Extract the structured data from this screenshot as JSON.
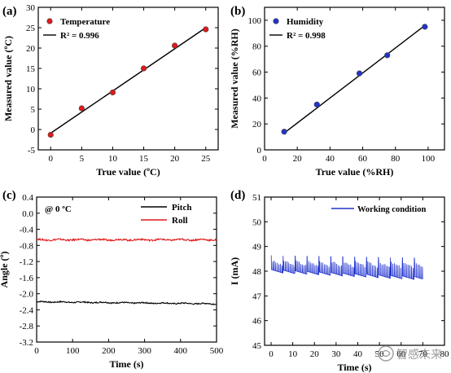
{
  "panels": [
    {
      "id": "a",
      "label": "(a)",
      "type": "scatter",
      "xlabel": "True value (ºC)",
      "ylabel": "Measured value (ºC)",
      "xlim": [
        -2,
        27
      ],
      "ylim": [
        -5,
        30
      ],
      "xticks": [
        0,
        5,
        10,
        15,
        20,
        25
      ],
      "yticks": [
        -5,
        0,
        5,
        10,
        15,
        20,
        25,
        30
      ],
      "series": [
        {
          "name": "Temperature",
          "color": "#e0191b",
          "x": [
            0,
            5,
            10,
            15,
            20,
            25
          ],
          "y": [
            -1.3,
            5.2,
            9.1,
            15.0,
            20.6,
            24.6
          ]
        }
      ],
      "fit": {
        "x": [
          0,
          25
        ],
        "y": [
          -0.9,
          25.0
        ],
        "label": "R² = 0.996"
      },
      "annotation": ""
    },
    {
      "id": "b",
      "label": "(b)",
      "type": "scatter",
      "xlabel": "True value (%RH)",
      "ylabel": "Measured value (%RH)",
      "xlim": [
        0,
        110
      ],
      "ylim": [
        0,
        110
      ],
      "xticks": [
        0,
        20,
        40,
        60,
        80,
        100
      ],
      "yticks": [
        0,
        20,
        40,
        60,
        80,
        100
      ],
      "series": [
        {
          "name": "Humidity",
          "color": "#2233cc",
          "x": [
            12,
            32,
            58,
            75,
            98
          ],
          "y": [
            14,
            35,
            59,
            73,
            95
          ]
        }
      ],
      "fit": {
        "x": [
          12,
          98
        ],
        "y": [
          13,
          96
        ],
        "label": "R² = 0.998"
      },
      "annotation": ""
    },
    {
      "id": "c",
      "label": "(c)",
      "type": "line",
      "xlabel": "Time (s)",
      "ylabel": "Angle (º)",
      "xlim": [
        0,
        500
      ],
      "ylim": [
        -3.2,
        0.4
      ],
      "xticks": [
        0,
        100,
        200,
        300,
        400,
        500
      ],
      "yticks": [
        -3.2,
        -2.8,
        -2.4,
        -2.0,
        -1.6,
        -1.2,
        -0.8,
        -0.4,
        0.0,
        0.4
      ],
      "series": [
        {
          "name": "Pitch",
          "color": "#000000",
          "base": -2.2,
          "trend": -0.05,
          "noise": 0.015
        },
        {
          "name": "Roll",
          "color": "#e0191b",
          "base": -0.66,
          "trend": 0.0,
          "noise": 0.02
        }
      ],
      "annotation": "@ 0 ºC"
    },
    {
      "id": "d",
      "label": "(d)",
      "type": "line",
      "xlabel": "Time (s)",
      "ylabel": "I (mA)",
      "xlim": [
        -3,
        80
      ],
      "ylim": [
        45,
        51
      ],
      "xticks": [
        0,
        10,
        20,
        30,
        40,
        50,
        60,
        70,
        80
      ],
      "yticks": [
        45,
        46,
        47,
        48,
        49,
        50,
        51
      ],
      "series": [
        {
          "name": "Working condition",
          "color": "#2233cc",
          "start": 0,
          "end": 70,
          "baseline": 47.95,
          "baselineEnd": 47.65,
          "peak": 48.45,
          "peakEnd": 48.35,
          "period": 5.5
        }
      ],
      "annotation": ""
    }
  ],
  "watermark": "智感未来"
}
